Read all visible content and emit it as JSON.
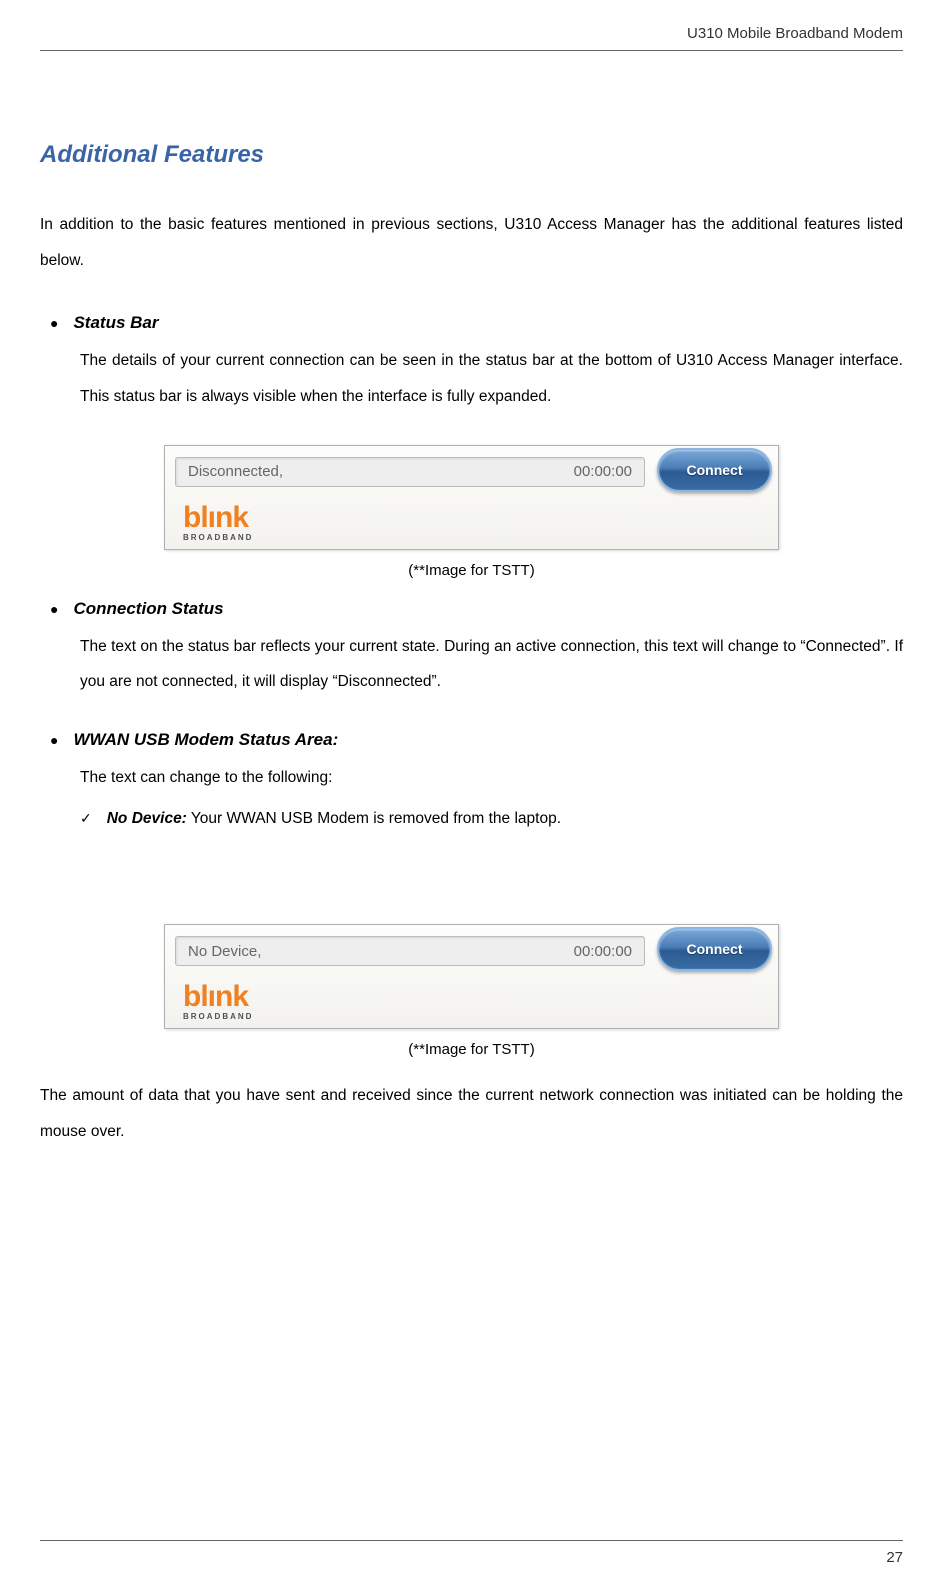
{
  "header": {
    "product_title": "U310 Mobile Broadband Modem"
  },
  "section": {
    "title": "Additional Features",
    "intro": "In addition to the basic features mentioned in previous sections, U310 Access Manager has the additional features listed below."
  },
  "features": {
    "status_bar": {
      "name": "Status Bar",
      "body": "The details of your current connection can be seen in the status bar at the bottom of U310 Access Manager interface. This status bar is always visible when the interface is fully expanded."
    },
    "connection_status": {
      "name": "Connection Status",
      "body": "The text on the status bar reflects your current state. During an active connection, this text will change to “Connected”.  If you are not connected, it will display “Disconnected”."
    },
    "wwan": {
      "name": "WWAN USB Modem Status Area:",
      "body": "The text can change to the following:",
      "sub_label": "No Device:",
      "sub_text": " Your WWAN USB Modem is removed from the laptop."
    }
  },
  "image1": {
    "status_text": "Disconnected,",
    "time": "00:00:00",
    "button": "Connect",
    "logo_main": "blınk",
    "logo_sub": "BROADBAND",
    "caption": "(**Image for TSTT)"
  },
  "image2": {
    "status_text": "No Device,",
    "time": "00:00:00",
    "button": "Connect",
    "logo_main": "blınk",
    "logo_sub": "BROADBAND",
    "caption": "(**Image for TSTT)"
  },
  "closing": "The amount of data that you have sent and received since the current network connection was initiated can be holding the mouse over.",
  "page_number": "27",
  "colors": {
    "title_color": "#3a64a8",
    "text_color": "#000000",
    "logo_orange": "#f08020",
    "button_gradient_top": "#7aa8d8",
    "button_gradient_bottom": "#3a6da5"
  },
  "typography": {
    "title_fontsize": 24,
    "body_fontsize": 15.5,
    "feature_name_fontsize": 17,
    "line_height": 2.3
  }
}
